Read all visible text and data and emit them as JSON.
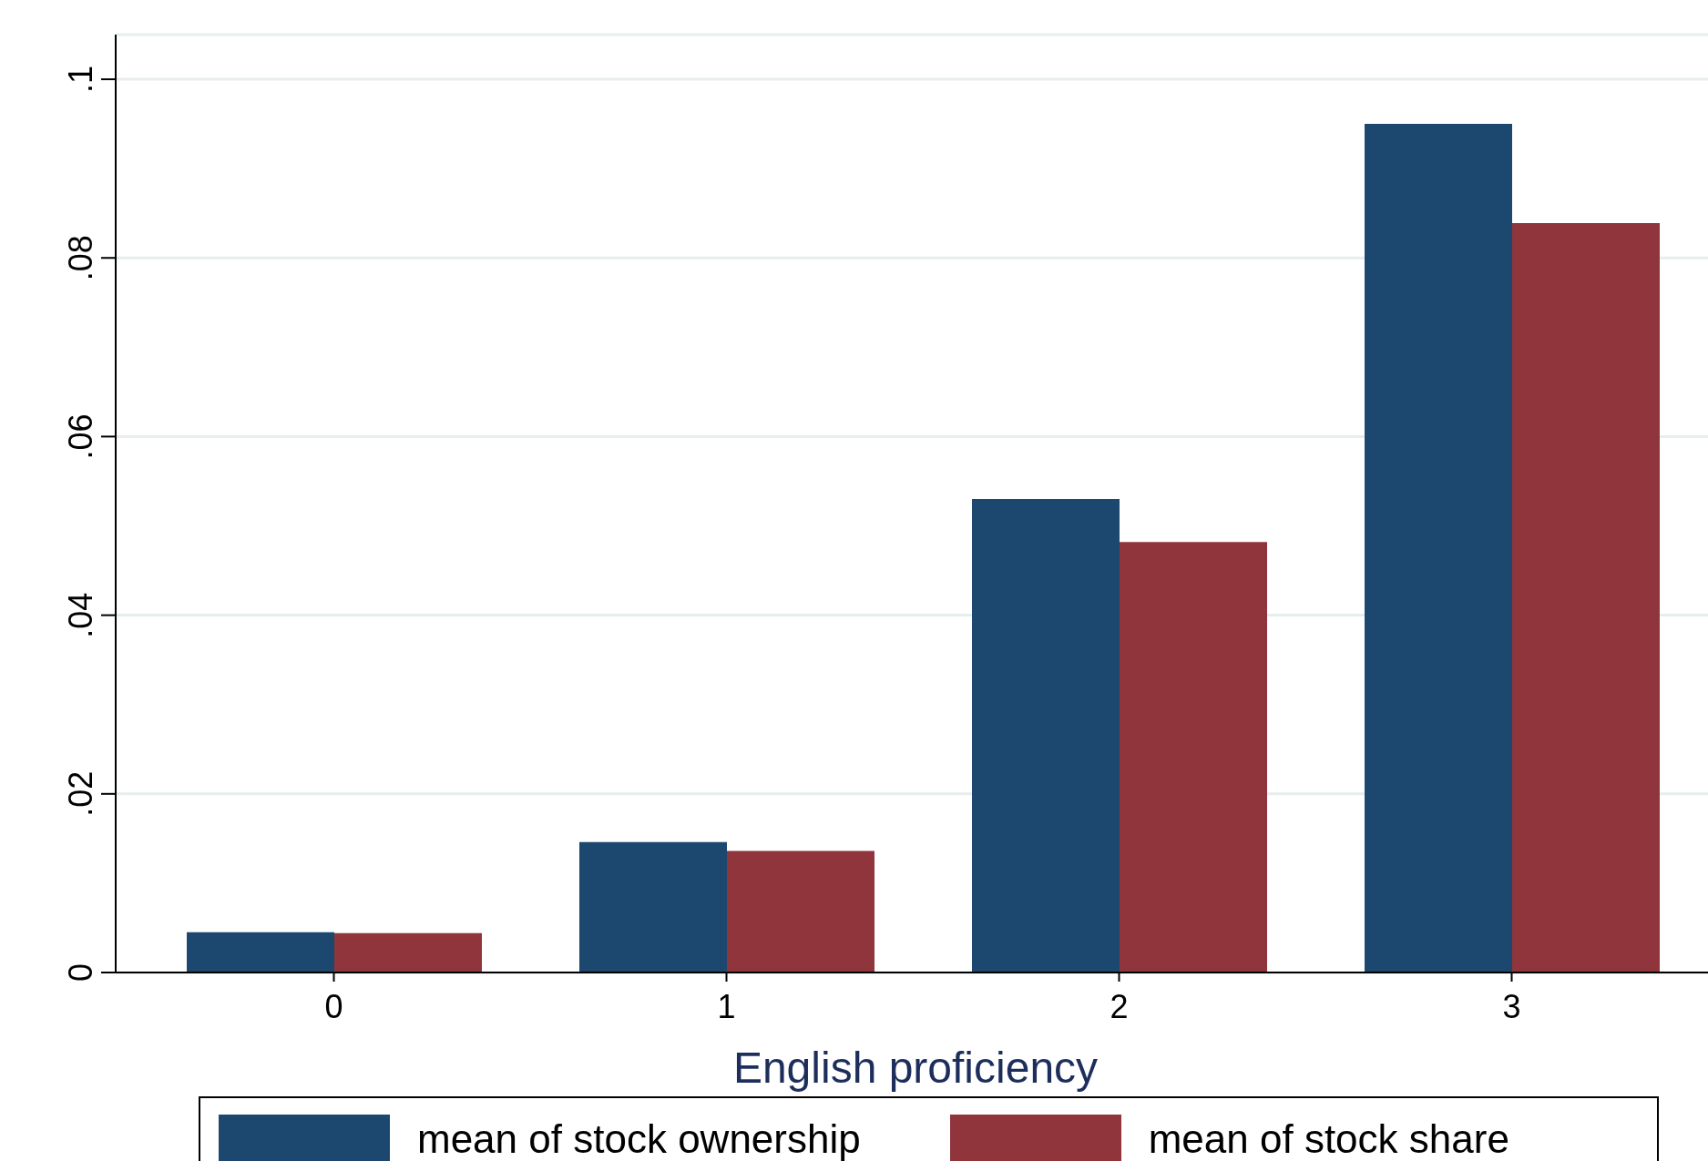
{
  "chart_data": {
    "type": "bar",
    "xlabel": "English proficiency",
    "categories": [
      "0",
      "1",
      "2",
      "3"
    ],
    "series": [
      {
        "name": "mean of stock ownership",
        "color": "#1c4870",
        "values": [
          0.0045,
          0.0146,
          0.053,
          0.095
        ]
      },
      {
        "name": "mean of stock share",
        "color": "#90353b",
        "values": [
          0.0044,
          0.0136,
          0.0482,
          0.0839
        ]
      }
    ],
    "ylim": [
      0,
      0.105
    ],
    "yticks": [
      0,
      {
        "value": 0.02,
        "label": ".02"
      },
      {
        "value": 0.04,
        "label": ".04"
      },
      {
        "value": 0.06,
        "label": ".06"
      },
      {
        "value": 0.08,
        "label": ".08"
      },
      {
        "value": 0.1,
        "label": ".1"
      }
    ],
    "grid": "y",
    "legend": "bottom"
  }
}
